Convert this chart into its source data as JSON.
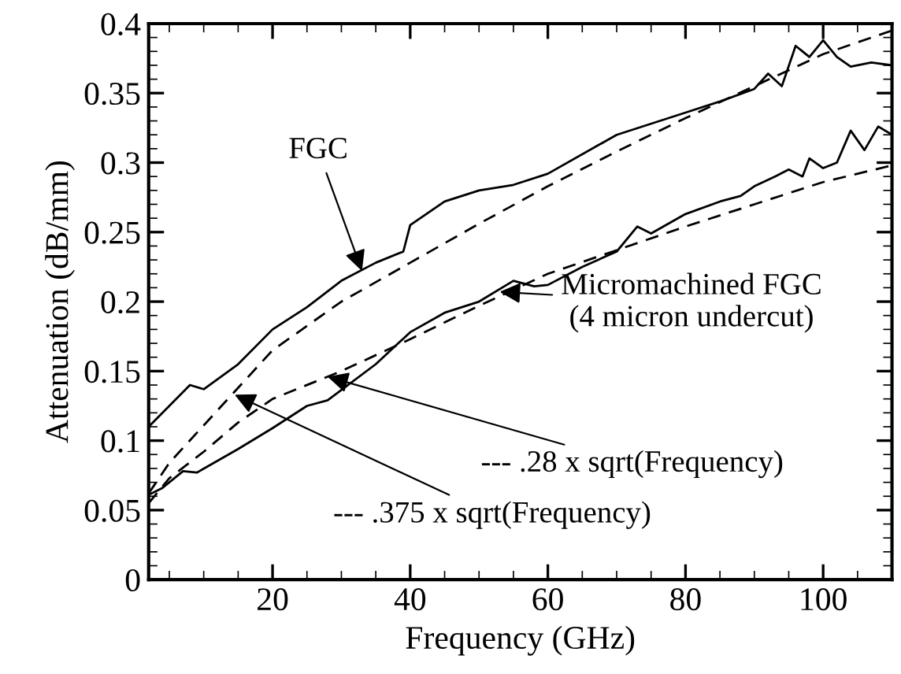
{
  "chart_data": {
    "type": "line",
    "xlabel": "Frequency (GHz)",
    "ylabel": "Attenuation (dB/mm)",
    "xlim": [
      2,
      110
    ],
    "xticks": [
      20,
      40,
      60,
      80,
      100
    ],
    "ylim": [
      0,
      0.4
    ],
    "yticks": [
      0,
      0.05,
      0.1,
      0.15,
      0.2,
      0.25,
      0.3,
      0.35,
      0.4
    ],
    "grid": false,
    "legend": false,
    "marker": "none",
    "series": [
      {
        "color": "#000000",
        "line_style": "solid",
        "x": [
          2,
          5,
          8,
          10,
          15,
          20,
          25,
          30,
          35,
          39,
          40,
          45,
          50,
          55,
          60,
          70,
          80,
          85,
          90,
          92,
          94,
          96,
          98,
          100,
          102,
          104,
          107,
          110
        ],
        "values": [
          0.11,
          0.125,
          0.14,
          0.137,
          0.155,
          0.18,
          0.196,
          0.215,
          0.228,
          0.236,
          0.255,
          0.272,
          0.28,
          0.284,
          0.292,
          0.32,
          0.336,
          0.344,
          0.353,
          0.364,
          0.355,
          0.384,
          0.376,
          0.388,
          0.376,
          0.369,
          0.372,
          0.37
        ]
      },
      {
        "color": "#000000",
        "line_style": "solid",
        "x": [
          2,
          4,
          7,
          9,
          15,
          20,
          25,
          28,
          35,
          40,
          45,
          50,
          55,
          58,
          60,
          65,
          70,
          73,
          75,
          80,
          85,
          88,
          90,
          93,
          95,
          97,
          98,
          100,
          102,
          104,
          106,
          108,
          110
        ],
        "values": [
          0.061,
          0.066,
          0.078,
          0.077,
          0.094,
          0.109,
          0.125,
          0.129,
          0.155,
          0.178,
          0.192,
          0.2,
          0.215,
          0.211,
          0.212,
          0.225,
          0.236,
          0.254,
          0.249,
          0.263,
          0.272,
          0.276,
          0.283,
          0.29,
          0.295,
          0.29,
          0.303,
          0.296,
          0.3,
          0.323,
          0.309,
          0.326,
          0.32
        ]
      },
      {
        "color": "#000000",
        "line_style": "dashed",
        "x": [
          2,
          5,
          10,
          15,
          20,
          30,
          40,
          50,
          60,
          70,
          80,
          90,
          100,
          110
        ],
        "values": [
          0.062,
          0.084,
          0.111,
          0.138,
          0.165,
          0.2,
          0.228,
          0.256,
          0.283,
          0.308,
          0.332,
          0.355,
          0.378,
          0.395
        ]
      },
      {
        "color": "#000000",
        "line_style": "dashed",
        "x": [
          2,
          5,
          10,
          15,
          20,
          30,
          40,
          50,
          60,
          70,
          80,
          90,
          100,
          110
        ],
        "values": [
          0.055,
          0.073,
          0.092,
          0.113,
          0.13,
          0.15,
          0.173,
          0.197,
          0.22,
          0.237,
          0.254,
          0.27,
          0.286,
          0.298
        ]
      }
    ],
    "annotations": [
      {
        "text": "FGC",
        "x": 33,
        "y": 0.222
      },
      {
        "text": "Micromachined FGC\n(4 micron undercut)",
        "x": 53,
        "y": 0.207
      },
      {
        "text": "--- .28 x sqrt(Frequency)",
        "x": 28,
        "y": 0.146
      },
      {
        "text": "--- .375 x sqrt(Frequency)",
        "x": 14.5,
        "y": 0.133
      }
    ]
  }
}
